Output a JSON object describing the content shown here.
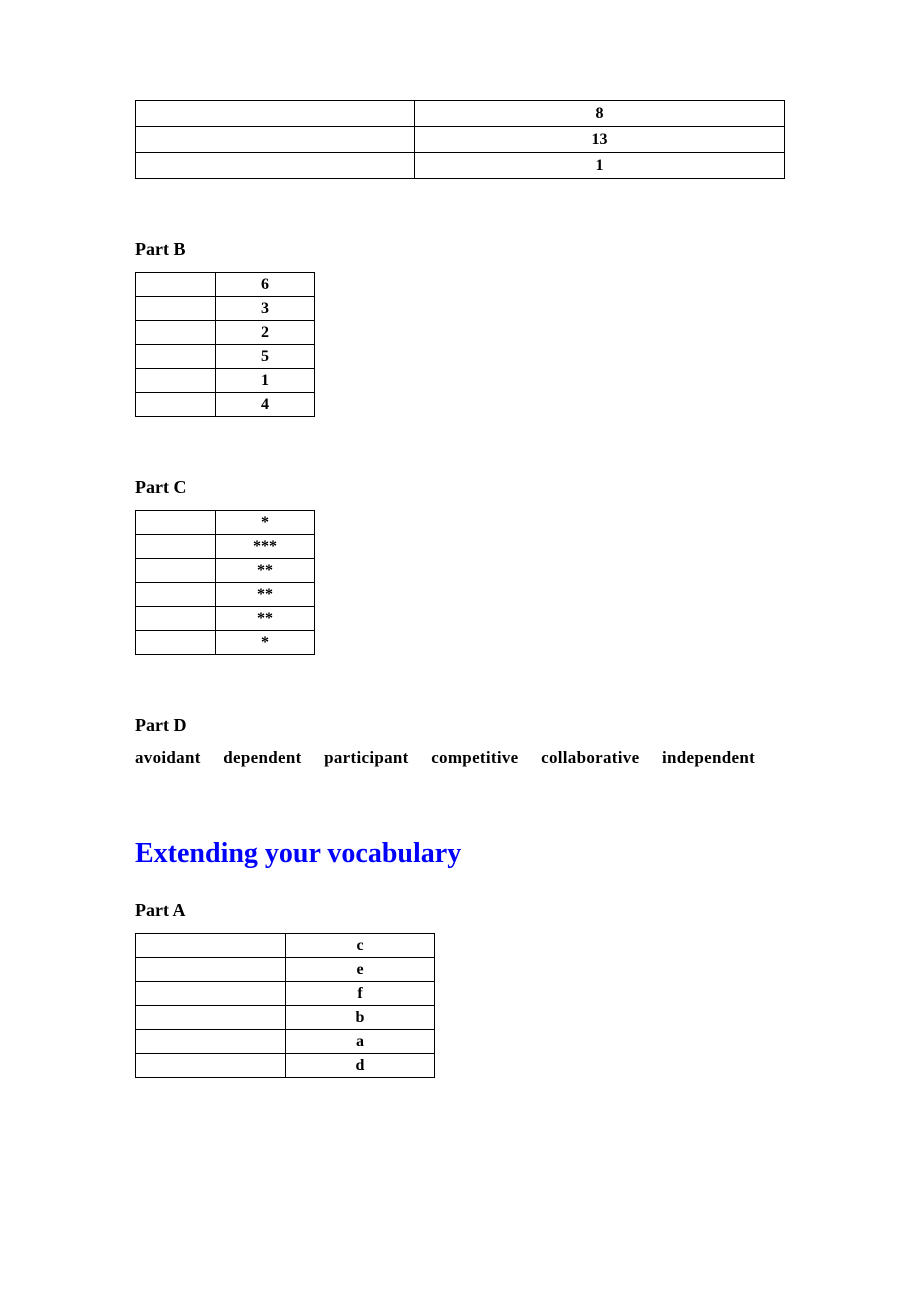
{
  "tableTop": {
    "rows": [
      {
        "col1": "",
        "col2": "8"
      },
      {
        "col1": "",
        "col2": "13"
      },
      {
        "col1": "",
        "col2": "1"
      }
    ]
  },
  "partB": {
    "heading": "Part B",
    "rows": [
      {
        "col1": "",
        "col2": "6"
      },
      {
        "col1": "",
        "col2": "3"
      },
      {
        "col1": "",
        "col2": "2"
      },
      {
        "col1": "",
        "col2": "5"
      },
      {
        "col1": "",
        "col2": "1"
      },
      {
        "col1": "",
        "col2": "4"
      }
    ]
  },
  "partC": {
    "heading": "Part C",
    "rows": [
      {
        "col1": "",
        "col2": "*"
      },
      {
        "col1": "",
        "col2": "***"
      },
      {
        "col1": "",
        "col2": "**"
      },
      {
        "col1": "",
        "col2": "**"
      },
      {
        "col1": "",
        "col2": "**"
      },
      {
        "col1": "",
        "col2": "*"
      }
    ]
  },
  "partD": {
    "heading": "Part D",
    "words": [
      "avoidant",
      "dependent",
      "participant",
      "competitive",
      "collaborative",
      "independent"
    ]
  },
  "sectionTitle": "Extending your vocabulary",
  "partA": {
    "heading": "Part A",
    "rows": [
      {
        "col1": "",
        "col2": "c"
      },
      {
        "col1": "",
        "col2": "e"
      },
      {
        "col1": "",
        "col2": "f"
      },
      {
        "col1": "",
        "col2": "b"
      },
      {
        "col1": "",
        "col2": "a"
      },
      {
        "col1": "",
        "col2": "d"
      }
    ]
  },
  "watermarkText": ""
}
